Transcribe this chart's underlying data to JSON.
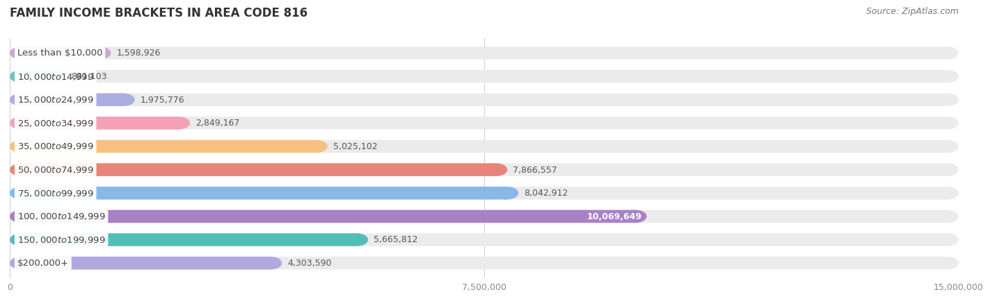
{
  "title": "FAMILY INCOME BRACKETS IN AREA CODE 816",
  "source": "Source: ZipAtlas.com",
  "categories": [
    "Less than $10,000",
    "$10,000 to $14,999",
    "$15,000 to $24,999",
    "$25,000 to $34,999",
    "$35,000 to $49,999",
    "$50,000 to $74,999",
    "$75,000 to $99,999",
    "$100,000 to $149,999",
    "$150,000 to $199,999",
    "$200,000+"
  ],
  "values": [
    1598926,
    881103,
    1975776,
    2849167,
    5025102,
    7866557,
    8042912,
    10069649,
    5665812,
    4303590
  ],
  "colors": [
    "#c9a8d4",
    "#6dc4b8",
    "#aaaee0",
    "#f4a0b5",
    "#f8c080",
    "#e8847a",
    "#88b8e8",
    "#a880c8",
    "#55bdb8",
    "#b0a8e0"
  ],
  "bar_bg_color": "#ebebeb",
  "xlim": [
    0,
    15000000
  ],
  "xticks": [
    0,
    7500000,
    15000000
  ],
  "xtick_labels": [
    "0",
    "7,500,000",
    "15,000,000"
  ],
  "value_labels": [
    "1,598,926",
    "881,103",
    "1,975,776",
    "2,849,167",
    "5,025,102",
    "7,866,557",
    "8,042,912",
    "10,069,649",
    "5,665,812",
    "4,303,590"
  ],
  "background_color": "#ffffff",
  "bar_height": 0.55,
  "bar_gap": 1.0,
  "label_fontsize": 9.5,
  "title_fontsize": 12,
  "value_fontsize": 9,
  "source_fontsize": 9
}
